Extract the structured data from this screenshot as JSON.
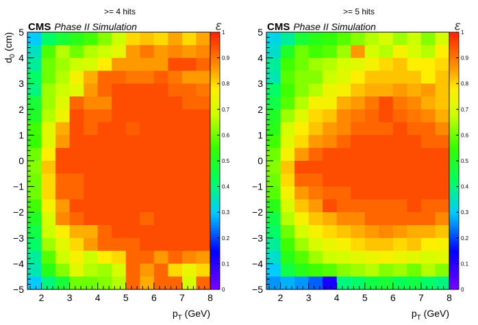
{
  "chart_data": [
    {
      "type": "heatmap",
      "title": ">= 4 hits",
      "experiment_label": "CMS",
      "experiment_sublabel": "Phase II Simulation",
      "xlabel_base": "p",
      "xlabel_sub": "T",
      "xlabel_unit": " (GeV)",
      "ylabel_base": "d",
      "ylabel_sub": "0",
      "ylabel_unit": " (cm)",
      "z_symbol": "ε",
      "xlim": [
        1.5,
        8.0
      ],
      "ylim": [
        -5,
        5
      ],
      "zlim": [
        0,
        1
      ],
      "x_ticks": [
        "2",
        "3",
        "4",
        "5",
        "6",
        "7",
        "8"
      ],
      "y_ticks": [
        "−5",
        "−4",
        "−3",
        "−2",
        "−1",
        "0",
        "1",
        "2",
        "3",
        "4",
        "5"
      ],
      "z_ticks": [
        "0",
        "0.1",
        "0.2",
        "0.3",
        "0.4",
        "0.5",
        "0.6",
        "0.7",
        "0.8",
        "0.9",
        "1"
      ],
      "x_bins": [
        1.5,
        2.0,
        2.5,
        3.0,
        3.5,
        4.0,
        4.5,
        5.0,
        5.5,
        6.0,
        6.5,
        7.0,
        7.5,
        8.0
      ],
      "y_bins_note": "rows from d0 = +5 (top) to d0 = -5 (bottom), bin width 0.5 cm",
      "values": [
        [
          0.3,
          0.42,
          0.48,
          0.52,
          0.56,
          0.62,
          0.68,
          0.8,
          0.82,
          0.8,
          0.85,
          0.8,
          0.85
        ],
        [
          0.35,
          0.57,
          0.66,
          0.6,
          0.66,
          0.68,
          0.73,
          0.86,
          0.9,
          0.86,
          0.88,
          0.86,
          0.88
        ],
        [
          0.38,
          0.6,
          0.64,
          0.68,
          0.7,
          0.78,
          0.86,
          0.86,
          0.86,
          0.86,
          0.95,
          0.95,
          0.92
        ],
        [
          0.42,
          0.6,
          0.66,
          0.76,
          0.84,
          0.92,
          0.92,
          0.9,
          0.9,
          0.93,
          0.9,
          0.86,
          0.86
        ],
        [
          0.4,
          0.64,
          0.68,
          0.72,
          0.86,
          0.92,
          0.95,
          0.95,
          0.95,
          0.95,
          0.92,
          0.92,
          0.9
        ],
        [
          0.48,
          0.64,
          0.72,
          0.92,
          0.88,
          0.88,
          0.95,
          0.95,
          0.95,
          0.95,
          0.95,
          0.92,
          0.92
        ],
        [
          0.5,
          0.66,
          0.75,
          0.95,
          0.92,
          0.92,
          0.95,
          0.95,
          0.95,
          0.95,
          0.95,
          0.95,
          0.95
        ],
        [
          0.56,
          0.72,
          0.84,
          0.95,
          0.92,
          0.95,
          0.95,
          0.93,
          0.95,
          0.95,
          0.95,
          0.95,
          0.95
        ],
        [
          0.55,
          0.72,
          0.86,
          0.95,
          0.95,
          0.95,
          0.95,
          0.95,
          0.95,
          0.95,
          0.95,
          0.95,
          0.95
        ],
        [
          0.6,
          0.78,
          0.95,
          0.95,
          0.95,
          0.95,
          0.95,
          0.95,
          0.95,
          0.95,
          0.95,
          0.95,
          0.95
        ],
        [
          0.62,
          0.82,
          0.95,
          0.95,
          0.95,
          0.95,
          0.95,
          0.95,
          0.95,
          0.95,
          0.95,
          0.95,
          0.95
        ],
        [
          0.6,
          0.8,
          0.92,
          0.92,
          0.95,
          0.95,
          0.95,
          0.95,
          0.95,
          0.95,
          0.95,
          0.95,
          0.95
        ],
        [
          0.6,
          0.8,
          0.92,
          0.92,
          0.95,
          0.95,
          0.95,
          0.95,
          0.95,
          0.95,
          0.95,
          0.95,
          0.95
        ],
        [
          0.56,
          0.76,
          0.86,
          0.95,
          0.95,
          0.95,
          0.95,
          0.95,
          0.95,
          0.95,
          0.95,
          0.95,
          0.95
        ],
        [
          0.5,
          0.7,
          0.88,
          0.92,
          0.95,
          0.95,
          0.95,
          0.95,
          0.92,
          0.95,
          0.95,
          0.95,
          0.95
        ],
        [
          0.46,
          0.68,
          0.78,
          0.84,
          0.84,
          0.92,
          0.95,
          0.95,
          0.95,
          0.95,
          0.95,
          0.95,
          0.95
        ],
        [
          0.42,
          0.64,
          0.72,
          0.8,
          0.86,
          0.92,
          0.92,
          0.92,
          0.95,
          0.95,
          0.95,
          0.95,
          0.95
        ],
        [
          0.38,
          0.58,
          0.68,
          0.76,
          0.68,
          0.78,
          0.8,
          0.92,
          0.92,
          0.86,
          0.92,
          0.88,
          0.86
        ],
        [
          0.36,
          0.52,
          0.62,
          0.72,
          0.66,
          0.64,
          0.7,
          0.92,
          0.86,
          0.92,
          0.8,
          0.74,
          0.8
        ],
        [
          0.3,
          0.4,
          0.48,
          0.6,
          0.6,
          0.62,
          0.66,
          0.92,
          0.84,
          0.92,
          0.92,
          0.7,
          0.92
        ]
      ]
    },
    {
      "type": "heatmap",
      "title": ">= 5 hits",
      "experiment_label": "CMS",
      "experiment_sublabel": "Phase II Simulation",
      "xlabel_base": "p",
      "xlabel_sub": "T",
      "xlabel_unit": " (GeV)",
      "ylabel_base": "",
      "ylabel_sub": "",
      "ylabel_unit": "",
      "z_symbol": "ε",
      "xlim": [
        1.5,
        8.0
      ],
      "ylim": [
        -5,
        5
      ],
      "zlim": [
        0,
        1
      ],
      "x_ticks": [
        "2",
        "3",
        "4",
        "5",
        "6",
        "7",
        "8"
      ],
      "y_ticks": [
        "−5",
        "−4",
        "−3",
        "−2",
        "−1",
        "0",
        "1",
        "2",
        "3",
        "4",
        "5"
      ],
      "z_ticks": [
        "0",
        "0.1",
        "0.2",
        "0.3",
        "0.4",
        "0.5",
        "0.6",
        "0.7",
        "0.8",
        "0.9",
        "1"
      ],
      "x_bins": [
        1.5,
        2.0,
        2.5,
        3.0,
        3.5,
        4.0,
        4.5,
        5.0,
        5.5,
        6.0,
        6.5,
        7.0,
        7.5,
        8.0
      ],
      "y_bins_note": "rows from d0 = +5 (top) to d0 = -5 (bottom), bin width 0.5 cm",
      "values": [
        [
          0.32,
          0.38,
          0.48,
          0.52,
          0.54,
          0.58,
          0.62,
          0.66,
          0.7,
          0.64,
          0.68,
          0.62,
          0.7
        ],
        [
          0.34,
          0.5,
          0.6,
          0.56,
          0.58,
          0.64,
          0.86,
          0.7,
          0.66,
          0.76,
          0.7,
          0.66,
          0.78
        ],
        [
          0.38,
          0.56,
          0.6,
          0.64,
          0.66,
          0.7,
          0.72,
          0.76,
          0.8,
          0.82,
          0.78,
          0.78,
          0.8
        ],
        [
          0.36,
          0.58,
          0.62,
          0.62,
          0.68,
          0.72,
          0.78,
          0.82,
          0.82,
          0.82,
          0.82,
          0.78,
          0.82
        ],
        [
          0.42,
          0.56,
          0.62,
          0.66,
          0.74,
          0.76,
          0.82,
          0.84,
          0.84,
          0.86,
          0.84,
          0.86,
          0.82
        ],
        [
          0.46,
          0.58,
          0.66,
          0.76,
          0.76,
          0.84,
          0.86,
          0.9,
          0.95,
          0.9,
          0.88,
          0.84,
          0.82
        ],
        [
          0.5,
          0.64,
          0.72,
          0.8,
          0.82,
          0.88,
          0.9,
          0.92,
          0.95,
          0.92,
          0.9,
          0.88,
          0.84
        ],
        [
          0.52,
          0.7,
          0.78,
          0.82,
          0.86,
          0.88,
          0.92,
          0.92,
          0.92,
          0.95,
          0.92,
          0.92,
          0.88
        ],
        [
          0.56,
          0.72,
          0.8,
          0.86,
          0.88,
          0.92,
          0.95,
          0.95,
          0.95,
          0.95,
          0.95,
          0.92,
          0.92
        ],
        [
          0.6,
          0.76,
          0.86,
          0.92,
          0.95,
          0.95,
          0.95,
          0.95,
          0.95,
          0.95,
          0.95,
          0.95,
          0.95
        ],
        [
          0.62,
          0.82,
          0.95,
          0.95,
          0.95,
          0.95,
          0.95,
          0.95,
          0.95,
          0.95,
          0.95,
          0.95,
          0.95
        ],
        [
          0.6,
          0.8,
          0.92,
          0.92,
          0.95,
          0.95,
          0.95,
          0.95,
          0.95,
          0.95,
          0.95,
          0.95,
          0.95
        ],
        [
          0.58,
          0.76,
          0.86,
          0.9,
          0.92,
          0.92,
          0.95,
          0.95,
          0.95,
          0.95,
          0.95,
          0.95,
          0.95
        ],
        [
          0.52,
          0.7,
          0.82,
          0.86,
          0.95,
          0.92,
          0.92,
          0.92,
          0.92,
          0.92,
          0.95,
          0.92,
          0.92
        ],
        [
          0.46,
          0.66,
          0.76,
          0.82,
          0.84,
          0.88,
          0.88,
          0.92,
          0.92,
          0.92,
          0.92,
          0.92,
          0.88
        ],
        [
          0.42,
          0.6,
          0.7,
          0.76,
          0.8,
          0.82,
          0.84,
          0.86,
          0.88,
          0.86,
          0.84,
          0.84,
          0.82
        ],
        [
          0.38,
          0.56,
          0.64,
          0.7,
          0.74,
          0.76,
          0.8,
          0.82,
          0.82,
          0.8,
          0.82,
          0.78,
          0.76
        ],
        [
          0.34,
          0.52,
          0.58,
          0.64,
          0.68,
          0.7,
          0.72,
          0.74,
          0.76,
          0.74,
          0.72,
          0.7,
          0.72
        ],
        [
          0.3,
          0.46,
          0.52,
          0.56,
          0.58,
          0.62,
          0.64,
          0.66,
          0.62,
          0.64,
          0.6,
          0.66,
          0.62
        ],
        [
          0.26,
          0.28,
          0.26,
          0.22,
          0.12,
          0.4,
          0.42,
          0.46,
          0.48,
          0.44,
          0.46,
          0.42,
          0.4
        ]
      ]
    }
  ],
  "palette": {
    "stops": [
      "#7a00ff",
      "#0000ff",
      "#00ccff",
      "#00ff66",
      "#33ff00",
      "#ccff00",
      "#ffee00",
      "#ff9900",
      "#ff2200"
    ],
    "positions": [
      0.0,
      0.15,
      0.3,
      0.42,
      0.55,
      0.68,
      0.78,
      0.86,
      1.0
    ]
  }
}
